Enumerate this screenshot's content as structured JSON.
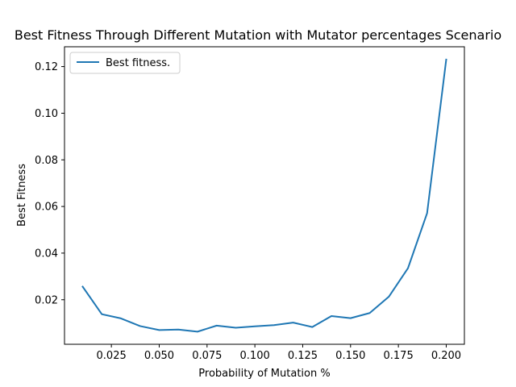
{
  "chart_data": {
    "type": "line",
    "title": "Best Fitness Through Different Mutation with Mutator percentages Scenario",
    "xlabel": "Probability of Mutation %",
    "ylabel": "Best Fitness",
    "xlim": [
      0.0005,
      0.2095
    ],
    "ylim": [
      0.0009,
      0.1285
    ],
    "xticks": [
      0.025,
      0.05,
      0.075,
      0.1,
      0.125,
      0.15,
      0.175,
      0.2
    ],
    "xtick_labels": [
      "0.025",
      "0.050",
      "0.075",
      "0.100",
      "0.125",
      "0.150",
      "0.175",
      "0.200"
    ],
    "yticks": [
      0.02,
      0.04,
      0.06,
      0.08,
      0.1,
      0.12
    ],
    "ytick_labels": [
      "0.02",
      "0.04",
      "0.06",
      "0.08",
      "0.10",
      "0.12"
    ],
    "grid": false,
    "legend": {
      "placement": "top-left",
      "entries": [
        "Best fitness."
      ]
    },
    "series": [
      {
        "name": "Best fitness.",
        "color": "#1f77b4",
        "x": [
          0.01,
          0.02,
          0.03,
          0.04,
          0.05,
          0.06,
          0.07,
          0.08,
          0.09,
          0.1,
          0.11,
          0.12,
          0.13,
          0.14,
          0.15,
          0.16,
          0.17,
          0.18,
          0.19,
          0.2
        ],
        "y": [
          0.0256,
          0.0138,
          0.012,
          0.0087,
          0.007,
          0.0072,
          0.0063,
          0.0089,
          0.008,
          0.0086,
          0.0091,
          0.0102,
          0.0083,
          0.013,
          0.0121,
          0.0143,
          0.0213,
          0.0335,
          0.0571,
          0.123
        ]
      }
    ]
  }
}
